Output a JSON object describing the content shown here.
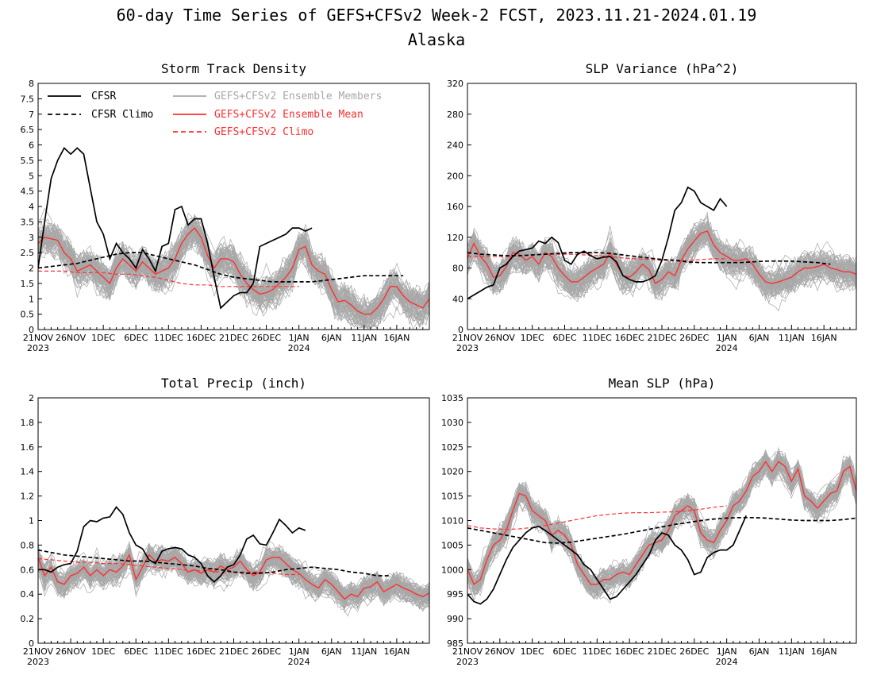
{
  "figure": {
    "title": "60-day Time Series of GEFS+CFSv2 Week-2 FCST, 2023.11.21-2024.01.19",
    "subtitle": "Alaska"
  },
  "legend": [
    {
      "name": "CFSR",
      "color": "#000000",
      "style": "solid"
    },
    {
      "name": "CFSR Climo",
      "color": "#000000",
      "style": "dashed"
    },
    {
      "name": "GEFS+CFSv2 Ensemble Members",
      "color": "#a8a8a8",
      "style": "solid"
    },
    {
      "name": "GEFS+CFSv2 Ensemble Mean",
      "color": "#ff3030",
      "style": "solid"
    },
    {
      "name": "GEFS+CFSv2 Climo",
      "color": "#ff3030",
      "style": "dashed"
    }
  ],
  "colors": {
    "cfsr": "#000000",
    "members": "#a8a8a8",
    "mean": "#ff3030",
    "climo": "#ff3030"
  },
  "chart_data": [
    {
      "type": "line",
      "title": "Storm Track Density",
      "ylim": [
        0,
        8
      ],
      "yticks": [
        "0",
        "0.5",
        "1",
        "1.5",
        "2",
        "2.5",
        "3",
        "3.5",
        "4",
        "4.5",
        "5",
        "5.5",
        "6",
        "6.5",
        "7",
        "7.5",
        "8"
      ],
      "xticks": [
        "21NOV",
        "26NOV",
        "1DEC",
        "6DEC",
        "11DEC",
        "16DEC",
        "21DEC",
        "26DEC",
        "1JAN",
        "6JAN",
        "11JAN",
        "16JAN"
      ],
      "xyear": [
        "2023",
        "2024"
      ],
      "series": [
        {
          "name": "CFSR",
          "values": [
            2.0,
            3.5,
            4.9,
            5.5,
            5.9,
            5.7,
            5.9,
            5.7,
            4.6,
            3.5,
            3.1,
            2.3,
            2.8,
            2.5,
            2.3,
            2.0,
            2.6,
            2.3,
            1.9,
            2.7,
            2.8,
            3.9,
            4.0,
            3.4,
            3.6,
            3.6,
            2.8,
            1.7,
            0.7,
            0.9,
            1.1,
            1.2,
            1.2,
            1.5,
            2.7,
            2.8,
            2.9,
            3.0,
            3.1,
            3.3,
            3.3,
            3.2,
            3.3
          ]
        },
        {
          "name": "CFSR Climo",
          "values": [
            2.0,
            2.05,
            2.1,
            2.15,
            2.25,
            2.35,
            2.45,
            2.5,
            2.5,
            2.4,
            2.3,
            2.2,
            2.1,
            1.95,
            1.8,
            1.7,
            1.65,
            1.6,
            1.55,
            1.55,
            1.55,
            1.55,
            1.6,
            1.65,
            1.7,
            1.75,
            1.75,
            1.75,
            1.75
          ]
        },
        {
          "name": "GEFS+CFSv2 Ensemble Mean",
          "values": [
            2.8,
            3.0,
            2.95,
            2.9,
            2.5,
            2.3,
            1.9,
            2.0,
            2.1,
            1.9,
            1.7,
            1.5,
            2.0,
            2.3,
            2.1,
            1.9,
            2.2,
            2.0,
            1.8,
            1.9,
            2.0,
            2.3,
            2.8,
            3.1,
            3.3,
            3.0,
            2.4,
            2.0,
            2.3,
            2.3,
            2.2,
            1.8,
            1.5,
            1.3,
            1.15,
            1.2,
            1.3,
            1.5,
            1.7,
            2.0,
            2.6,
            2.7,
            2.1,
            1.9,
            1.8,
            1.3,
            0.9,
            0.95,
            0.8,
            0.6,
            0.5,
            0.5,
            0.7,
            1.0,
            1.4,
            1.4,
            1.1,
            0.9,
            0.8,
            0.7,
            1.0
          ]
        },
        {
          "name": "GEFS+CFSv2 Climo",
          "values": [
            1.9,
            1.9,
            1.9,
            1.85,
            1.85,
            1.85,
            1.8,
            1.8,
            1.75,
            1.7,
            1.6,
            1.5,
            1.45,
            1.45,
            1.4,
            1.4,
            1.4,
            1.4,
            1.4,
            1.4,
            1.4
          ]
        }
      ]
    },
    {
      "type": "line",
      "title": "SLP Variance (hPa^2)",
      "ylim": [
        0,
        320
      ],
      "yticks": [
        "0",
        "40",
        "80",
        "120",
        "160",
        "200",
        "240",
        "280",
        "320"
      ],
      "xticks": [
        "21NOV",
        "26NOV",
        "1DEC",
        "6DEC",
        "11DEC",
        "16DEC",
        "21DEC",
        "26DEC",
        "1JAN",
        "6JAN",
        "11JAN",
        "16JAN"
      ],
      "xyear": [
        "2023",
        "2024"
      ],
      "series": [
        {
          "name": "CFSR",
          "values": [
            40,
            45,
            50,
            55,
            58,
            80,
            85,
            95,
            102,
            104,
            106,
            115,
            112,
            120,
            113,
            90,
            85,
            98,
            102,
            96,
            92,
            94,
            95,
            88,
            70,
            65,
            62,
            62,
            65,
            70,
            90,
            120,
            155,
            165,
            185,
            180,
            165,
            160,
            155,
            170,
            160
          ]
        },
        {
          "name": "CFSR Climo",
          "values": [
            100,
            98,
            97,
            96,
            96,
            97,
            98,
            99,
            100,
            100,
            100,
            99,
            97,
            95,
            93,
            91,
            90,
            88,
            87,
            87,
            87,
            87,
            88,
            89,
            89,
            89,
            88,
            87,
            85
          ]
        },
        {
          "name": "GEFS+CFSv2 Ensemble Mean",
          "values": [
            93,
            112,
            95,
            85,
            68,
            70,
            82,
            100,
            98,
            90,
            95,
            85,
            100,
            95,
            80,
            70,
            62,
            62,
            68,
            75,
            80,
            85,
            100,
            85,
            70,
            68,
            75,
            85,
            78,
            60,
            65,
            75,
            70,
            90,
            105,
            115,
            125,
            128,
            110,
            100,
            95,
            90,
            90,
            92,
            85,
            72,
            62,
            60,
            62,
            65,
            68,
            75,
            80,
            80,
            82,
            85,
            80,
            78,
            75,
            75,
            72
          ]
        },
        {
          "name": "GEFS+CFSv2 Climo",
          "values": [
            95,
            95,
            95,
            95,
            96,
            97,
            98,
            98,
            98,
            97,
            96,
            95,
            93,
            92,
            91,
            90,
            90,
            90,
            91,
            92,
            92
          ]
        }
      ]
    },
    {
      "type": "line",
      "title": "Total Precip (inch)",
      "ylim": [
        0,
        2
      ],
      "yticks": [
        "0",
        "0.2",
        "0.4",
        "0.6",
        "0.8",
        "1",
        "1.2",
        "1.4",
        "1.6",
        "1.8",
        "2"
      ],
      "xticks": [
        "21NOV",
        "26NOV",
        "1DEC",
        "6DEC",
        "11DEC",
        "16DEC",
        "21DEC",
        "26DEC",
        "1JAN",
        "6JAN",
        "11JAN",
        "16JAN"
      ],
      "xyear": [
        "2023",
        "2024"
      ],
      "series": [
        {
          "name": "CFSR",
          "values": [
            0.6,
            0.6,
            0.58,
            0.62,
            0.64,
            0.65,
            0.75,
            0.95,
            1.0,
            0.99,
            1.02,
            1.03,
            1.11,
            1.05,
            0.9,
            0.8,
            0.77,
            0.68,
            0.65,
            0.75,
            0.77,
            0.78,
            0.77,
            0.72,
            0.7,
            0.65,
            0.55,
            0.5,
            0.55,
            0.62,
            0.64,
            0.72,
            0.85,
            0.88,
            0.81,
            0.8,
            0.9,
            1.01,
            0.96,
            0.9,
            0.94,
            0.92
          ]
        },
        {
          "name": "CFSR Climo",
          "values": [
            0.76,
            0.74,
            0.72,
            0.71,
            0.7,
            0.69,
            0.68,
            0.67,
            0.67,
            0.66,
            0.65,
            0.64,
            0.63,
            0.61,
            0.6,
            0.58,
            0.57,
            0.57,
            0.58,
            0.6,
            0.61,
            0.62,
            0.61,
            0.6,
            0.58,
            0.57,
            0.55,
            0.55
          ]
        },
        {
          "name": "GEFS+CFSv2 Ensemble Mean",
          "values": [
            0.7,
            0.55,
            0.62,
            0.5,
            0.48,
            0.55,
            0.57,
            0.62,
            0.55,
            0.6,
            0.55,
            0.6,
            0.58,
            0.63,
            0.72,
            0.52,
            0.62,
            0.72,
            0.67,
            0.68,
            0.67,
            0.7,
            0.65,
            0.58,
            0.6,
            0.57,
            0.6,
            0.58,
            0.63,
            0.6,
            0.62,
            0.67,
            0.6,
            0.55,
            0.58,
            0.68,
            0.7,
            0.7,
            0.65,
            0.6,
            0.57,
            0.52,
            0.48,
            0.45,
            0.52,
            0.48,
            0.42,
            0.36,
            0.4,
            0.38,
            0.45,
            0.46,
            0.5,
            0.42,
            0.45,
            0.48,
            0.45,
            0.43,
            0.4,
            0.38,
            0.41
          ]
        },
        {
          "name": "GEFS+CFSv2 Climo",
          "values": [
            0.69,
            0.68,
            0.67,
            0.66,
            0.66,
            0.65,
            0.65,
            0.64,
            0.63,
            0.62,
            0.61,
            0.6,
            0.59,
            0.59,
            0.58,
            0.58,
            0.58,
            0.58,
            0.57,
            0.56,
            0.56
          ]
        }
      ]
    },
    {
      "type": "line",
      "title": "Mean SLP (hPa)",
      "ylim": [
        985,
        1035
      ],
      "yticks": [
        "985",
        "990",
        "995",
        "1000",
        "1005",
        "1010",
        "1015",
        "1020",
        "1025",
        "1030",
        "1035"
      ],
      "xticks": [
        "21NOV",
        "26NOV",
        "1DEC",
        "6DEC",
        "11DEC",
        "16DEC",
        "21DEC",
        "26DEC",
        "1JAN",
        "6JAN",
        "11JAN",
        "16JAN"
      ],
      "xyear": [
        "2023",
        "2024"
      ],
      "series": [
        {
          "name": "CFSR",
          "values": [
            995,
            993.5,
            993,
            994,
            996,
            999,
            1002,
            1004.5,
            1006,
            1007.5,
            1008.5,
            1008.8,
            1008,
            1007,
            1006,
            1005,
            1004,
            1003,
            1001,
            1000,
            998,
            996,
            994,
            994.5,
            996,
            997.5,
            999,
            1001,
            1003,
            1006,
            1007.5,
            1007,
            1005,
            1004,
            1002,
            999,
            999.5,
            1002.5,
            1003.5,
            1004,
            1004,
            1005,
            1008,
            1011
          ]
        },
        {
          "name": "CFSR Climo",
          "values": [
            1008.5,
            1008,
            1007.5,
            1007,
            1006.5,
            1006,
            1005.5,
            1005.4,
            1005.6,
            1006,
            1006.4,
            1006.8,
            1007.2,
            1007.7,
            1008.2,
            1008.7,
            1009.2,
            1009.6,
            1010,
            1010.3,
            1010.5,
            1010.6,
            1010.6,
            1010.5,
            1010.3,
            1010.1,
            1010,
            1010,
            1010,
            1010.2,
            1010.5
          ]
        },
        {
          "name": "GEFS+CFSv2 Ensemble Mean",
          "values": [
            1000,
            997,
            998,
            1002,
            1005,
            1006,
            1008,
            1012,
            1015.5,
            1015,
            1012,
            1011,
            1010,
            1007,
            1008,
            1007,
            1005,
            1001,
            999,
            997,
            997,
            998,
            998,
            999,
            999.5,
            999,
            1001,
            1003,
            1005,
            1005.5,
            1006,
            1008,
            1011,
            1012,
            1013,
            1012,
            1007.5,
            1006,
            1005.5,
            1008,
            1010,
            1013,
            1014,
            1016,
            1019,
            1020,
            1022,
            1020,
            1022,
            1021,
            1018,
            1020.5,
            1015,
            1014,
            1012.5,
            1014,
            1015.5,
            1016,
            1020,
            1021,
            1016
          ]
        },
        {
          "name": "GEFS+CFSv2 Climo",
          "values": [
            1009,
            1008.5,
            1008.3,
            1008.2,
            1008.3,
            1008.6,
            1009,
            1009.5,
            1010,
            1010.5,
            1011,
            1011.3,
            1011.5,
            1011.6,
            1011.6,
            1011.7,
            1011.8,
            1012,
            1012.3,
            1012.7,
            1013
          ]
        }
      ]
    }
  ]
}
